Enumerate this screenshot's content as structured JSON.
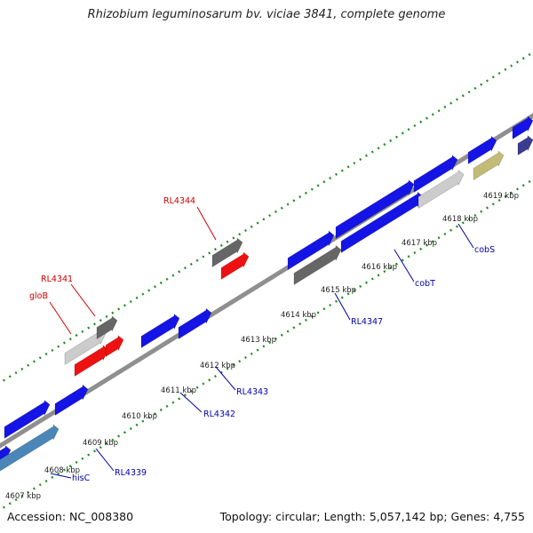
{
  "title": "Rhizobium leguminosarum bv. viciae 3841, complete genome",
  "footer": {
    "accession": "Accession: NC_008380",
    "summary": "Topology: circular; Length: 5,057,142 bp; Genes: 4,755"
  },
  "colors": {
    "backbone": "#8f8f8f",
    "dots": "#1f8a1f",
    "gene_blue": "#1414e6",
    "gene_red": "#ee1111",
    "gene_dark_gray": "#666666",
    "gene_light_gray": "#cccccc",
    "gene_steel": "#4a86b8",
    "gene_olive": "#c2bb77",
    "gene_navy": "#3b3b8f",
    "label_blue": "#0000aa",
    "label_red": "#cc0000"
  },
  "ticks": [
    "4607 kbp",
    "4608 kbp",
    "4609 kbp",
    "4610 kbp",
    "4611 kbp",
    "4612 kbp",
    "4613 kbp",
    "4614 kbp",
    "4615 kbp",
    "4616 kbp",
    "4617 kbp",
    "4618 kbp",
    "4619 kbp"
  ],
  "gene_labels": [
    {
      "name": "hisC",
      "color": "blue"
    },
    {
      "name": "RL4339",
      "color": "blue"
    },
    {
      "name": "RL4342",
      "color": "blue"
    },
    {
      "name": "RL4343",
      "color": "blue"
    },
    {
      "name": "RL4347",
      "color": "blue"
    },
    {
      "name": "cobT",
      "color": "blue"
    },
    {
      "name": "cobS",
      "color": "blue"
    },
    {
      "name": "RL4344",
      "color": "red"
    },
    {
      "name": "RL4341",
      "color": "red"
    },
    {
      "name": "gloB",
      "color": "red"
    }
  ]
}
